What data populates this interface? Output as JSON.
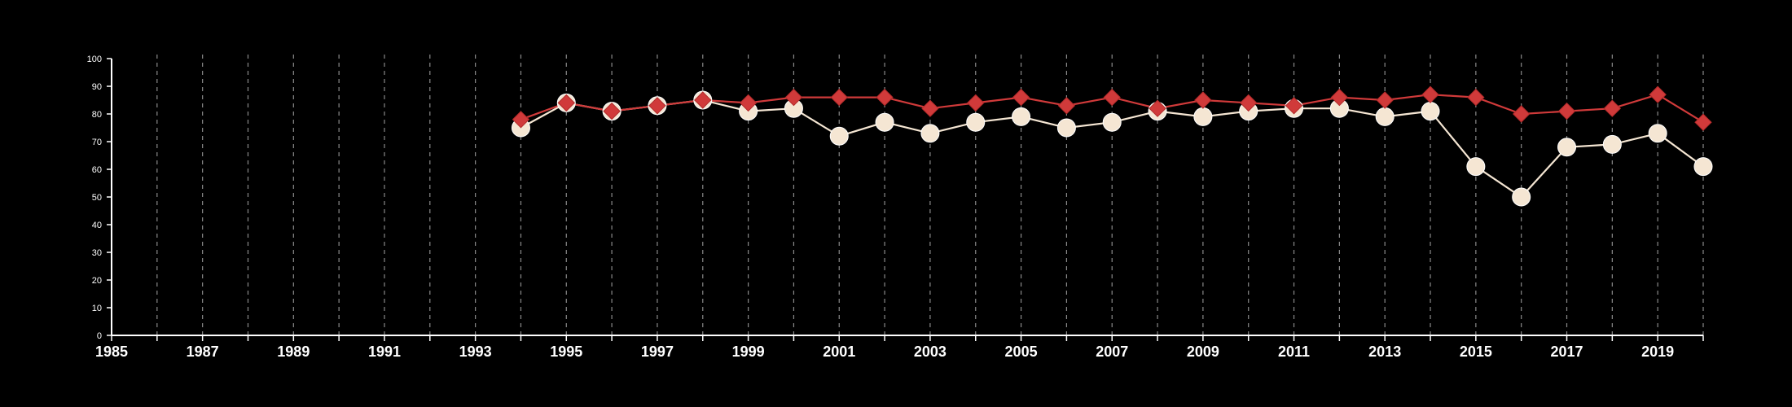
{
  "chart_data": {
    "type": "line",
    "title": "",
    "xlabel": "",
    "ylabel": "",
    "xlim": [
      1985,
      2020
    ],
    "ylim": [
      0,
      100
    ],
    "x_ticks": [
      1985,
      1987,
      1989,
      1991,
      1993,
      1995,
      1997,
      1999,
      2001,
      2003,
      2005,
      2007,
      2009,
      2011,
      2013,
      2015,
      2017,
      2019
    ],
    "y_ticks": [
      0,
      10,
      20,
      30,
      40,
      50,
      60,
      70,
      80,
      90,
      100
    ],
    "grid": "vertical dashed lines at each year",
    "background": "#000000",
    "series": [
      {
        "color": "#f5e6d3",
        "marker": "circle",
        "x": [
          1994,
          1995,
          1996,
          1997,
          1998,
          1999,
          2000,
          2001,
          2002,
          2003,
          2004,
          2005,
          2006,
          2007,
          2008,
          2009,
          2010,
          2011,
          2012,
          2013,
          2014,
          2015,
          2016,
          2017,
          2018,
          2019,
          2020
        ],
        "values": [
          75,
          84,
          81,
          83,
          85,
          81,
          82,
          72,
          77,
          73,
          77,
          79,
          75,
          77,
          81,
          79,
          81,
          82,
          82,
          79,
          81,
          61,
          50,
          68,
          69,
          73,
          61
        ]
      },
      {
        "color": "#d03a3a",
        "marker": "diamond",
        "x": [
          1994,
          1995,
          1996,
          1997,
          1998,
          1999,
          2000,
          2001,
          2002,
          2003,
          2004,
          2005,
          2006,
          2007,
          2008,
          2009,
          2010,
          2011,
          2012,
          2013,
          2014,
          2015,
          2016,
          2017,
          2018,
          2019,
          2020
        ],
        "values": [
          78,
          84,
          81,
          83,
          85,
          84,
          86,
          86,
          86,
          82,
          84,
          86,
          83,
          86,
          82,
          85,
          84,
          83,
          86,
          85,
          87,
          86,
          80,
          81,
          82,
          87,
          77
        ]
      }
    ]
  }
}
